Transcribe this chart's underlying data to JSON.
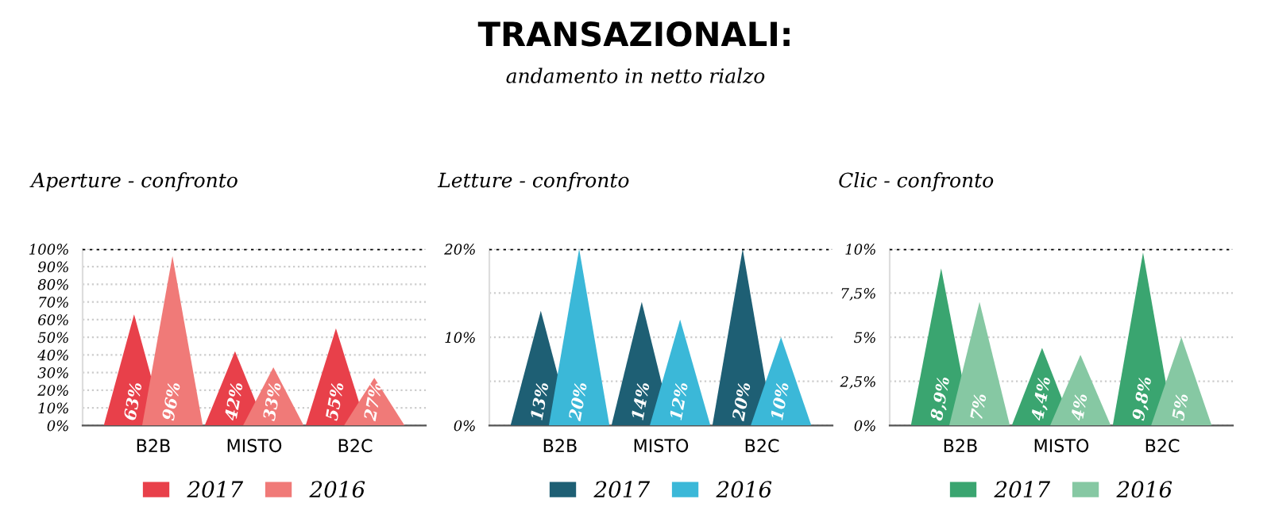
{
  "chart_data": [
    {
      "type": "bar",
      "title": "Aperture - confronto",
      "annotations": [
        "TRANSAZIONALI:",
        "andamento in netto rialzo"
      ],
      "categories": [
        "B2B",
        "MISTO",
        "B2C"
      ],
      "series": [
        {
          "name": "2017",
          "color": "#e8404a",
          "values": [
            63,
            42,
            55
          ],
          "value_labels": [
            "63%",
            "42%",
            "55%"
          ]
        },
        {
          "name": "2016",
          "color": "#f07a78",
          "values": [
            96,
            33,
            27
          ],
          "value_labels": [
            "96%",
            "33%",
            "27%"
          ]
        }
      ],
      "ylim": [
        0,
        100
      ],
      "yticks": [
        {
          "value": 0,
          "label": "0%"
        },
        {
          "value": 10,
          "label": "10%"
        },
        {
          "value": 20,
          "label": "20%"
        },
        {
          "value": 30,
          "label": "30%"
        },
        {
          "value": 40,
          "label": "40%"
        },
        {
          "value": 50,
          "label": "50%"
        },
        {
          "value": 60,
          "label": "60%"
        },
        {
          "value": 70,
          "label": "70%"
        },
        {
          "value": 80,
          "label": "80%"
        },
        {
          "value": 90,
          "label": "90%"
        },
        {
          "value": 100,
          "label": "100%"
        }
      ],
      "ref_lines": [
        {
          "axis": "y",
          "value": 100,
          "color": "#000000",
          "line_style": "dotted"
        }
      ],
      "grid": "y",
      "legend": "bottom"
    },
    {
      "type": "bar",
      "title": "Letture - confronto",
      "categories": [
        "B2B",
        "MISTO",
        "B2C"
      ],
      "series": [
        {
          "name": "2017",
          "color": "#1e5f74",
          "values": [
            13,
            14,
            20
          ],
          "value_labels": [
            "13%",
            "14%",
            "20%"
          ]
        },
        {
          "name": "2016",
          "color": "#3bb8d8",
          "values": [
            20,
            12,
            10
          ],
          "value_labels": [
            "20%",
            "12%",
            "10%"
          ]
        }
      ],
      "ylim": [
        0,
        20
      ],
      "yticks": [
        {
          "value": 0,
          "label": "0%"
        },
        {
          "value": 5,
          "label": null
        },
        {
          "value": 10,
          "label": "10%"
        },
        {
          "value": 15,
          "label": null
        },
        {
          "value": 20,
          "label": "20%"
        }
      ],
      "ref_lines": [
        {
          "axis": "y",
          "value": 20,
          "color": "#000000",
          "line_style": "dotted"
        }
      ],
      "grid": "y",
      "legend": "bottom"
    },
    {
      "type": "bar",
      "title": "Clic - confronto",
      "categories": [
        "B2B",
        "MISTO",
        "B2C"
      ],
      "series": [
        {
          "name": "2017",
          "color": "#3aa570",
          "values": [
            8.9,
            4.4,
            9.8
          ],
          "value_labels": [
            "8,9%",
            "4,4%",
            "9,8%"
          ]
        },
        {
          "name": "2016",
          "color": "#86c8a3",
          "values": [
            7,
            4,
            5
          ],
          "value_labels": [
            "7%",
            "4%",
            "5%"
          ]
        }
      ],
      "ylim": [
        0,
        10
      ],
      "yticks": [
        {
          "value": 0,
          "label": "0%"
        },
        {
          "value": 2.5,
          "label": "2,5%"
        },
        {
          "value": 5,
          "label": "5%"
        },
        {
          "value": 7.5,
          "label": "7,5%"
        },
        {
          "value": 10,
          "label": "10%"
        }
      ],
      "ref_lines": [
        {
          "axis": "y",
          "value": 10,
          "color": "#000000",
          "line_style": "dotted"
        }
      ],
      "grid": "y",
      "legend": "bottom"
    }
  ]
}
